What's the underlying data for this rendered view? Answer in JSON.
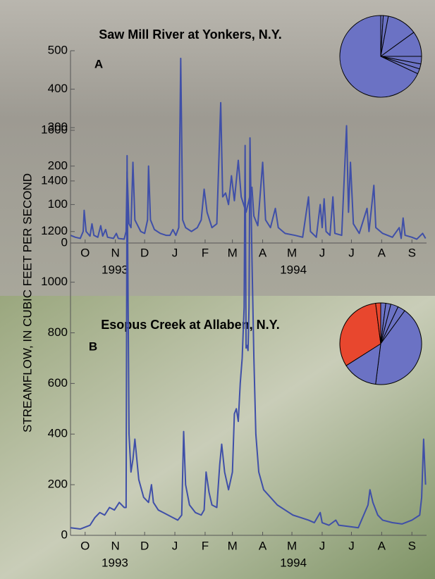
{
  "chart_data": [
    {
      "type": "line",
      "title": "Saw Mill River at Yonkers, N.Y.",
      "panel_label": "A",
      "ylabel": "STREAMFLOW, IN CUBIC FEET PER SECOND",
      "x": [
        0,
        5,
        10,
        13,
        14,
        16,
        20,
        22,
        24,
        28,
        31,
        33,
        36,
        38,
        44,
        47,
        49,
        55,
        57,
        58,
        60,
        62,
        64,
        66,
        68,
        72,
        76,
        79,
        80,
        82,
        86,
        92,
        98,
        102,
        105,
        108,
        111,
        113,
        115,
        118,
        124,
        130,
        134,
        137,
        140,
        145,
        150,
        154,
        156,
        159,
        162,
        165,
        168,
        172,
        175,
        180,
        186,
        188,
        192,
        197,
        200,
        205,
        210,
        213,
        220,
        230,
        238,
        244,
        246,
        252,
        256,
        258,
        260,
        262,
        266,
        269,
        271,
        278,
        283,
        285,
        287,
        290,
        296,
        304,
        306,
        311,
        313,
        320,
        330,
        337,
        339,
        341,
        343,
        350,
        355,
        361,
        364
      ],
      "series": [
        {
          "color": "#3f4fa8",
          "values": [
            20,
            15,
            12,
            30,
            85,
            30,
            18,
            50,
            20,
            15,
            45,
            18,
            35,
            15,
            12,
            25,
            12,
            10,
            30,
            185,
            50,
            40,
            210,
            60,
            50,
            30,
            25,
            60,
            200,
            60,
            35,
            25,
            20,
            20,
            35,
            20,
            40,
            480,
            60,
            40,
            30,
            40,
            60,
            140,
            80,
            40,
            50,
            365,
            120,
            130,
            100,
            175,
            110,
            215,
            120,
            80,
            145,
            70,
            45,
            210,
            60,
            40,
            90,
            40,
            25,
            20,
            15,
            120,
            30,
            15,
            100,
            40,
            115,
            30,
            20,
            120,
            25,
            20,
            305,
            80,
            210,
            50,
            25,
            90,
            30,
            150,
            40,
            25,
            15,
            40,
            12,
            65,
            20,
            15,
            10,
            25,
            12
          ]
        }
      ],
      "xlim": [
        0,
        365
      ],
      "xticks": [
        {
          "value": 15,
          "label": "O"
        },
        {
          "value": 46,
          "label": "N"
        },
        {
          "value": 76,
          "label": "D"
        },
        {
          "value": 107,
          "label": "J"
        },
        {
          "value": 138,
          "label": "F"
        },
        {
          "value": 166,
          "label": "M"
        },
        {
          "value": 197,
          "label": "A"
        },
        {
          "value": 227,
          "label": "M"
        },
        {
          "value": 258,
          "label": "J"
        },
        {
          "value": 288,
          "label": "J"
        },
        {
          "value": 319,
          "label": "A"
        },
        {
          "value": 350,
          "label": "S"
        }
      ],
      "x_group_labels": [
        "1993",
        "1994"
      ],
      "ylim": [
        0,
        500
      ],
      "yticks": [
        0,
        100,
        200,
        300,
        400,
        500
      ]
    },
    {
      "type": "pie",
      "values": [
        1,
        2,
        12,
        10,
        3,
        2,
        2,
        68
      ],
      "colors": [
        "#6b72c4",
        "#6b72c4",
        "#6b72c4",
        "#6b72c4",
        "#6b72c4",
        "#6b72c4",
        "#6b72c4",
        "#6b72c4"
      ]
    },
    {
      "type": "line",
      "title": "Esopus Creek at Allaben, N.Y.",
      "panel_label": "B",
      "x": [
        0,
        10,
        20,
        25,
        30,
        35,
        40,
        45,
        50,
        55,
        57,
        58,
        60,
        62,
        64,
        66,
        68,
        70,
        75,
        80,
        83,
        85,
        90,
        95,
        100,
        105,
        110,
        114,
        116,
        118,
        122,
        128,
        134,
        137,
        139,
        142,
        145,
        150,
        153,
        155,
        158,
        162,
        166,
        168,
        170,
        172,
        174,
        176,
        178,
        179,
        180,
        181,
        182,
        183,
        184,
        186,
        188,
        190,
        193,
        198,
        205,
        212,
        220,
        228,
        236,
        244,
        250,
        256,
        258,
        265,
        272,
        275,
        285,
        295,
        305,
        307,
        310,
        315,
        320,
        330,
        340,
        350,
        358,
        360,
        362,
        364
      ],
      "series": [
        {
          "color": "#3f4fa8",
          "values": [
            30,
            25,
            40,
            70,
            90,
            80,
            110,
            100,
            130,
            110,
            110,
            1500,
            400,
            250,
            300,
            380,
            300,
            220,
            150,
            130,
            200,
            130,
            100,
            90,
            80,
            70,
            60,
            80,
            410,
            200,
            120,
            90,
            80,
            100,
            250,
            170,
            120,
            110,
            280,
            360,
            250,
            180,
            250,
            480,
            500,
            450,
            600,
            700,
            900,
            1540,
            740,
            750,
            730,
            900,
            1570,
            1100,
            700,
            400,
            250,
            180,
            150,
            120,
            100,
            80,
            70,
            60,
            50,
            90,
            50,
            40,
            60,
            40,
            35,
            30,
            120,
            180,
            130,
            80,
            60,
            50,
            45,
            60,
            80,
            150,
            380,
            200
          ]
        }
      ],
      "xlim": [
        0,
        365
      ],
      "xticks": [
        {
          "value": 15,
          "label": "O"
        },
        {
          "value": 46,
          "label": "N"
        },
        {
          "value": 76,
          "label": "D"
        },
        {
          "value": 107,
          "label": "J"
        },
        {
          "value": 138,
          "label": "F"
        },
        {
          "value": 166,
          "label": "M"
        },
        {
          "value": 197,
          "label": "A"
        },
        {
          "value": 227,
          "label": "M"
        },
        {
          "value": 258,
          "label": "J"
        },
        {
          "value": 288,
          "label": "J"
        },
        {
          "value": 319,
          "label": "A"
        },
        {
          "value": 350,
          "label": "S"
        }
      ],
      "x_group_labels": [
        "1993",
        "1994"
      ],
      "ylim": [
        0,
        1600
      ],
      "yticks": [
        0,
        200,
        400,
        600,
        800,
        1000,
        1200,
        1400,
        1600
      ]
    },
    {
      "type": "pie",
      "values": [
        2,
        2,
        3,
        3,
        42,
        14,
        32,
        2
      ],
      "colors": [
        "#6b72c4",
        "#6b72c4",
        "#6b72c4",
        "#6b72c4",
        "#6b72c4",
        "#6b72c4",
        "#e8472e",
        "#e8472e"
      ]
    }
  ]
}
